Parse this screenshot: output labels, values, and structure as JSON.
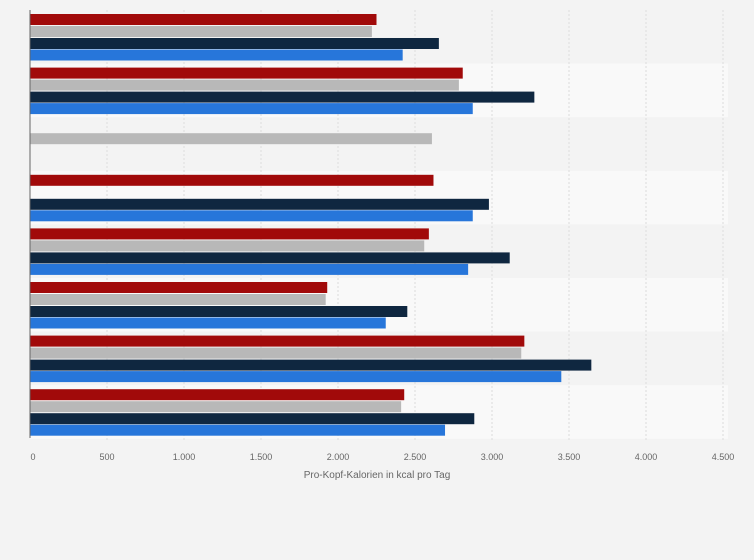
{
  "chart_data": {
    "type": "bar",
    "orientation": "horizontal",
    "title": "",
    "xlabel": "Pro-Kopf-Kalorien in kcal pro Tag",
    "ylabel": "",
    "xlim": [
      0,
      4500
    ],
    "xticks": [
      0,
      500,
      1000,
      1500,
      2000,
      2500,
      3000,
      3500,
      4000,
      4500
    ],
    "xtick_labels": [
      "0",
      "500",
      "1.000",
      "1.500",
      "2.000",
      "2.500",
      "3.000",
      "3.500",
      "4.000",
      "4.500"
    ],
    "grid": true,
    "legend": "none",
    "categories_count": 8,
    "series": [
      {
        "color": "#a10a0a",
        "values": [
          2250,
          2810,
          null,
          2620,
          2590,
          1930,
          3210,
          2430
        ]
      },
      {
        "color": "#b8b8b8",
        "values": [
          2220,
          2785,
          2610,
          null,
          2560,
          1920,
          3190,
          2410
        ]
      },
      {
        "color": "#0f2740",
        "values": [
          2655,
          3275,
          null,
          2980,
          3115,
          2450,
          3645,
          2885
        ]
      },
      {
        "color": "#2776da",
        "values": [
          2420,
          2875,
          null,
          2875,
          2845,
          2310,
          3450,
          2695
        ]
      }
    ]
  }
}
